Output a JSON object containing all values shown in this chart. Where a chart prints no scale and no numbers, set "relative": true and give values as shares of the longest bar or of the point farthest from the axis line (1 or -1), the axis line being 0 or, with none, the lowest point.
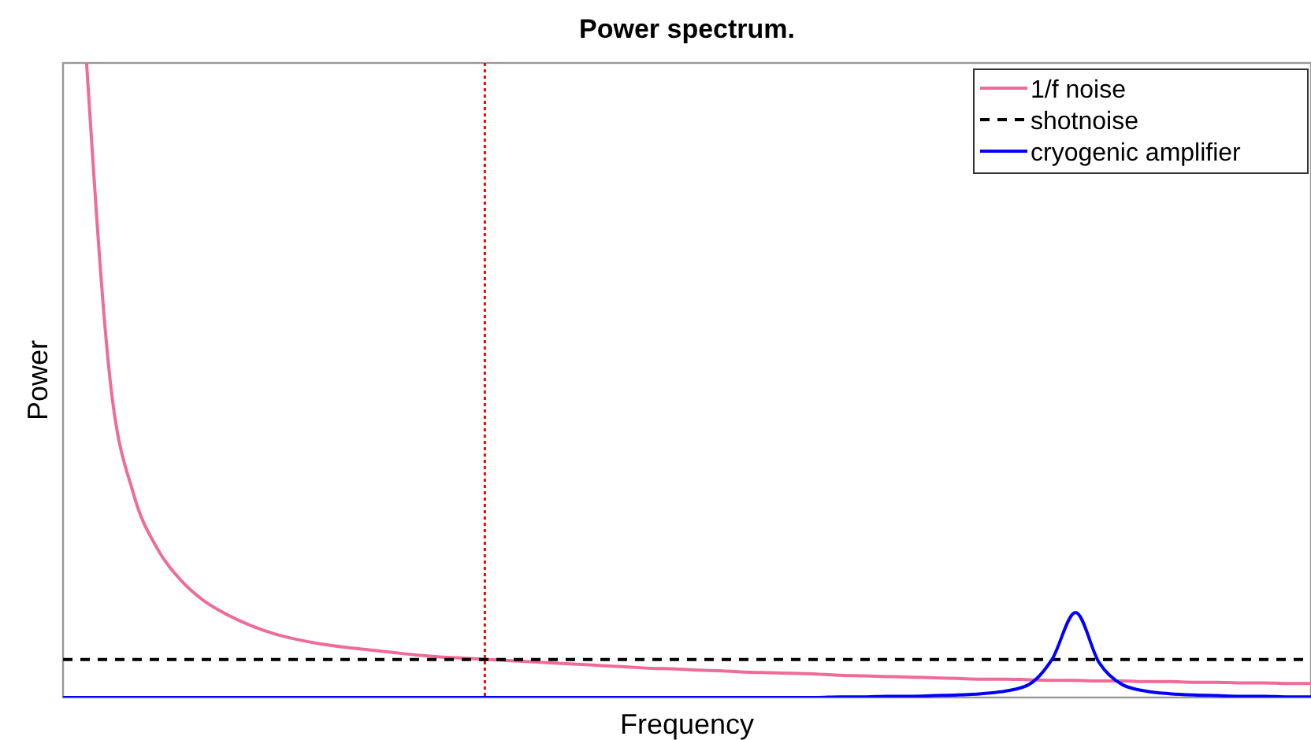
{
  "chart_data": {
    "type": "line",
    "title": "Power spectrum.",
    "xlabel": "Frequency",
    "ylabel": "Power",
    "relative": true,
    "legend": "top right",
    "marker": "none",
    "categories": [
      null,
      null,
      null,
      null,
      null,
      null,
      null,
      null,
      null,
      null,
      null,
      null,
      null,
      null,
      null,
      null,
      null,
      null,
      null,
      null,
      null,
      null,
      null,
      null,
      null,
      null,
      null,
      null,
      null,
      null,
      null,
      null,
      null,
      null,
      null,
      null,
      null,
      null,
      null,
      null,
      null,
      null,
      null,
      null,
      null,
      null,
      null,
      null,
      null,
      null,
      null,
      null,
      null,
      null
    ],
    "series": [
      {
        "name": "1/f noise",
        "color": "#f06a9a",
        "line_style": "solid",
        "values": [
          null,
          1.0,
          0.5,
          0.32,
          0.235,
          0.185,
          0.152,
          0.13,
          0.113,
          0.1,
          0.091,
          0.084,
          0.079,
          0.075,
          0.071,
          0.067,
          0.064,
          0.062,
          0.06,
          0.058,
          0.056,
          0.054,
          0.052,
          0.05,
          0.048,
          0.046,
          0.045,
          0.043,
          0.042,
          0.04,
          0.039,
          0.038,
          0.037,
          0.035,
          0.034,
          0.033,
          0.032,
          0.031,
          0.03,
          0.029,
          0.029,
          0.028,
          0.027,
          0.027,
          0.026,
          0.026,
          0.025,
          0.025,
          0.024,
          0.024,
          0.023,
          0.023,
          0.022,
          0.022
        ]
      },
      {
        "name": "shotnoise",
        "color": "#000000",
        "line_style": "dashed",
        "values": [
          0.06,
          0.06,
          0.06,
          0.06,
          0.06,
          0.06,
          0.06,
          0.06,
          0.06,
          0.06,
          0.06,
          0.06,
          0.06,
          0.06,
          0.06,
          0.06,
          0.06,
          0.06,
          0.06,
          0.06,
          0.06,
          0.06,
          0.06,
          0.06,
          0.06,
          0.06,
          0.06,
          0.06,
          0.06,
          0.06,
          0.06,
          0.06,
          0.06,
          0.06,
          0.06,
          0.06,
          0.06,
          0.06,
          0.06,
          0.06,
          0.06,
          0.06,
          0.06,
          0.06,
          0.06,
          0.06,
          0.06,
          0.06,
          0.06,
          0.06,
          0.06,
          0.06,
          0.06,
          0.06
        ]
      },
      {
        "name": "cryogenic amplifier",
        "color": "#0000ff",
        "line_style": "solid",
        "values": [
          0,
          0,
          0,
          0,
          0,
          0,
          0,
          0,
          0,
          0,
          0,
          0,
          0,
          0,
          0,
          0,
          0,
          0,
          0,
          0,
          0,
          0,
          0,
          0,
          0,
          0,
          0,
          0,
          0,
          0,
          0,
          0,
          0,
          0.001,
          0.001,
          0.002,
          0.002,
          0.003,
          0.004,
          0.006,
          0.01,
          0.02,
          0.06,
          0.134,
          0.055,
          0.02,
          0.01,
          0.006,
          0.004,
          0.003,
          0.002,
          0.002,
          0.001,
          0.001
        ]
      }
    ]
  }
}
